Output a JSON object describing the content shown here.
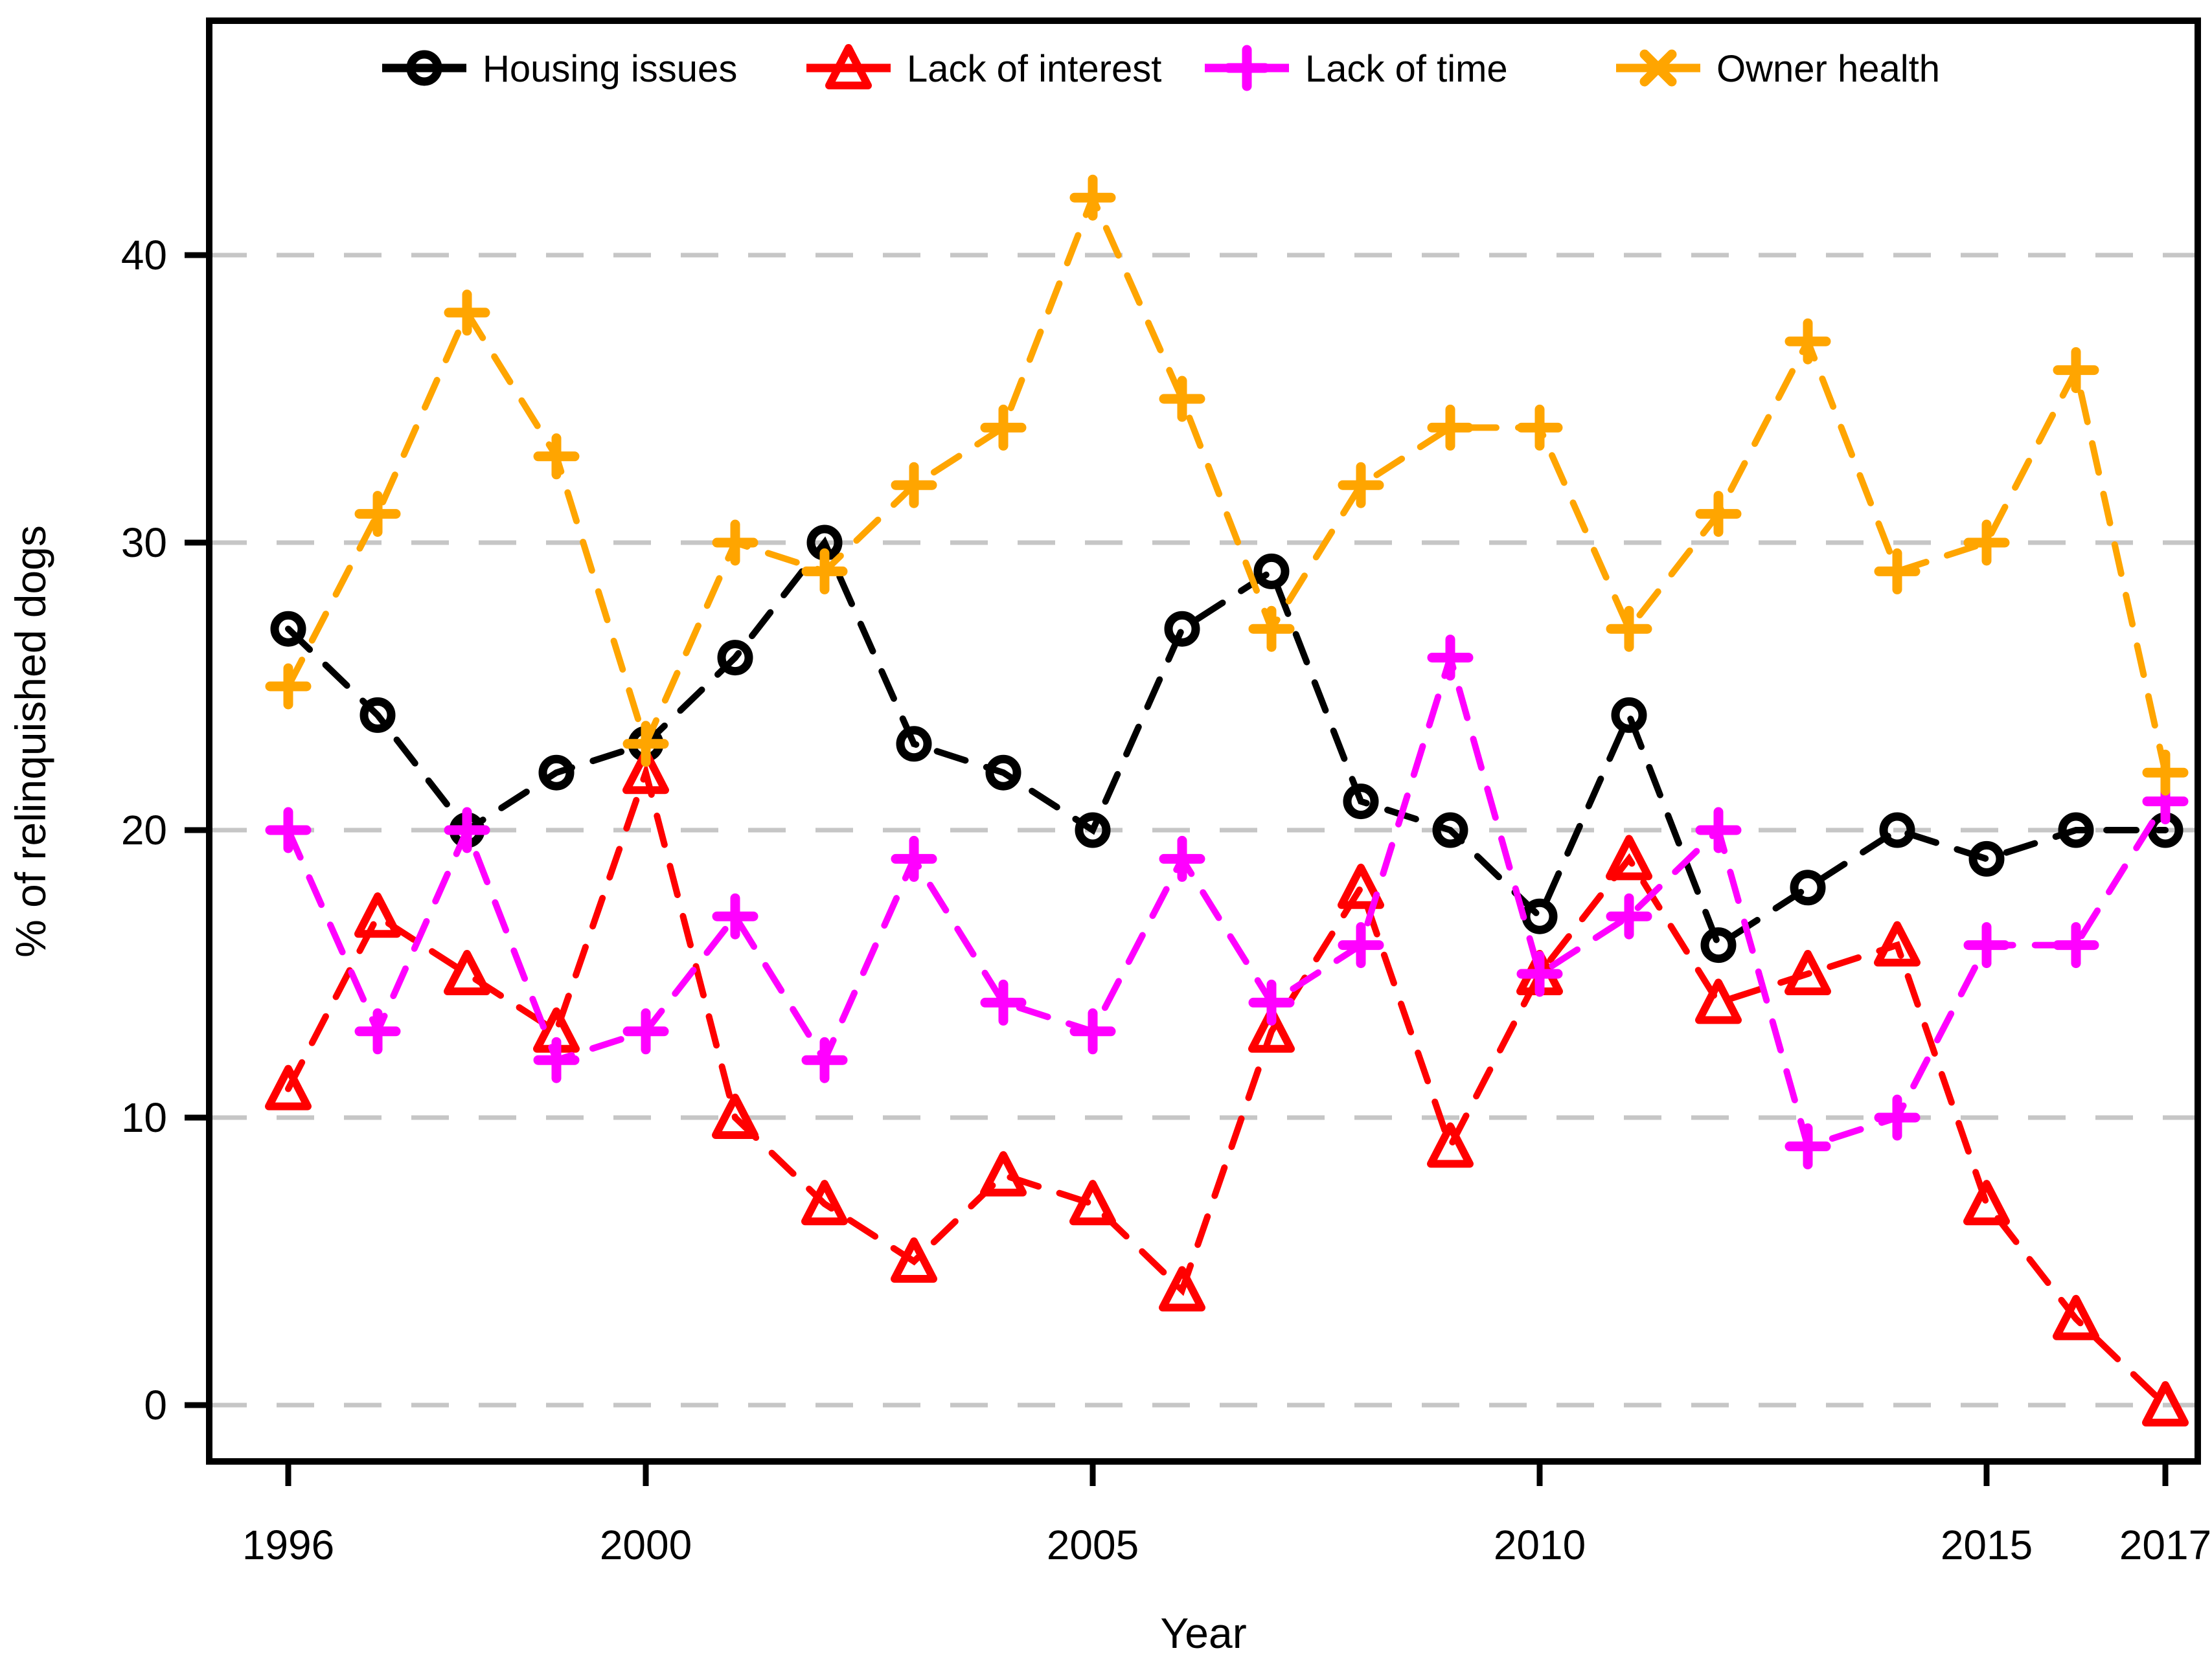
{
  "chart_data": {
    "type": "line",
    "title": "",
    "xlabel": "Year",
    "ylabel": "% of relinquished dogs",
    "x": [
      1996,
      1997,
      1998,
      1999,
      2000,
      2001,
      2002,
      2003,
      2004,
      2005,
      2006,
      2007,
      2008,
      2009,
      2010,
      2011,
      2012,
      2013,
      2014,
      2015,
      2016,
      2017
    ],
    "x_tick_labels": [
      "1996",
      "2000",
      "2005",
      "2010",
      "2015",
      "2017"
    ],
    "x_tick_values": [
      1996,
      2000,
      2005,
      2010,
      2015,
      2017
    ],
    "y_tick_labels": [
      "0",
      "10",
      "20",
      "30",
      "40"
    ],
    "y_tick_values": [
      0,
      10,
      20,
      30,
      40
    ],
    "xlim": [
      1995.1,
      2017.35
    ],
    "ylim": [
      -2,
      48.2
    ],
    "grid": "horizontal-dashed",
    "line_style": "dashed",
    "background_color": "#FFFFFF",
    "grid_color": "#C6C6C6",
    "axis_color": "#000000",
    "legend_position": "top-inside-horizontal",
    "series": [
      {
        "name": "Housing issues",
        "color": "#000000",
        "marker": "open-circle",
        "legend_marker": "open-circle",
        "values": [
          27,
          24,
          20,
          22,
          23,
          26,
          30,
          23,
          22,
          20,
          27,
          29,
          21,
          20,
          17,
          24,
          16,
          18,
          20,
          19,
          20,
          20
        ]
      },
      {
        "name": "Lack of interest",
        "color": "#FF0000",
        "marker": "open-triangle",
        "legend_marker": "open-triangle",
        "values": [
          11,
          17,
          15,
          13,
          22,
          10,
          7,
          5,
          8,
          7,
          4,
          13,
          18,
          9,
          15,
          19,
          14,
          15,
          16,
          7,
          3,
          0
        ]
      },
      {
        "name": "Lack of time",
        "color": "#FF00FF",
        "marker": "plus",
        "legend_marker": "plus",
        "values": [
          20,
          13,
          20,
          12,
          13,
          17,
          12,
          19,
          14,
          13,
          19,
          14,
          16,
          26,
          15,
          17,
          20,
          9,
          10,
          16,
          16,
          21
        ]
      },
      {
        "name": "Owner health",
        "color": "#FFA500",
        "marker": "plus",
        "legend_marker": "x",
        "values": [
          25,
          31,
          38,
          33,
          23,
          30,
          29,
          32,
          34,
          42,
          35,
          27,
          32,
          34,
          34,
          27,
          31,
          37,
          29,
          30,
          36,
          22
        ]
      }
    ]
  }
}
